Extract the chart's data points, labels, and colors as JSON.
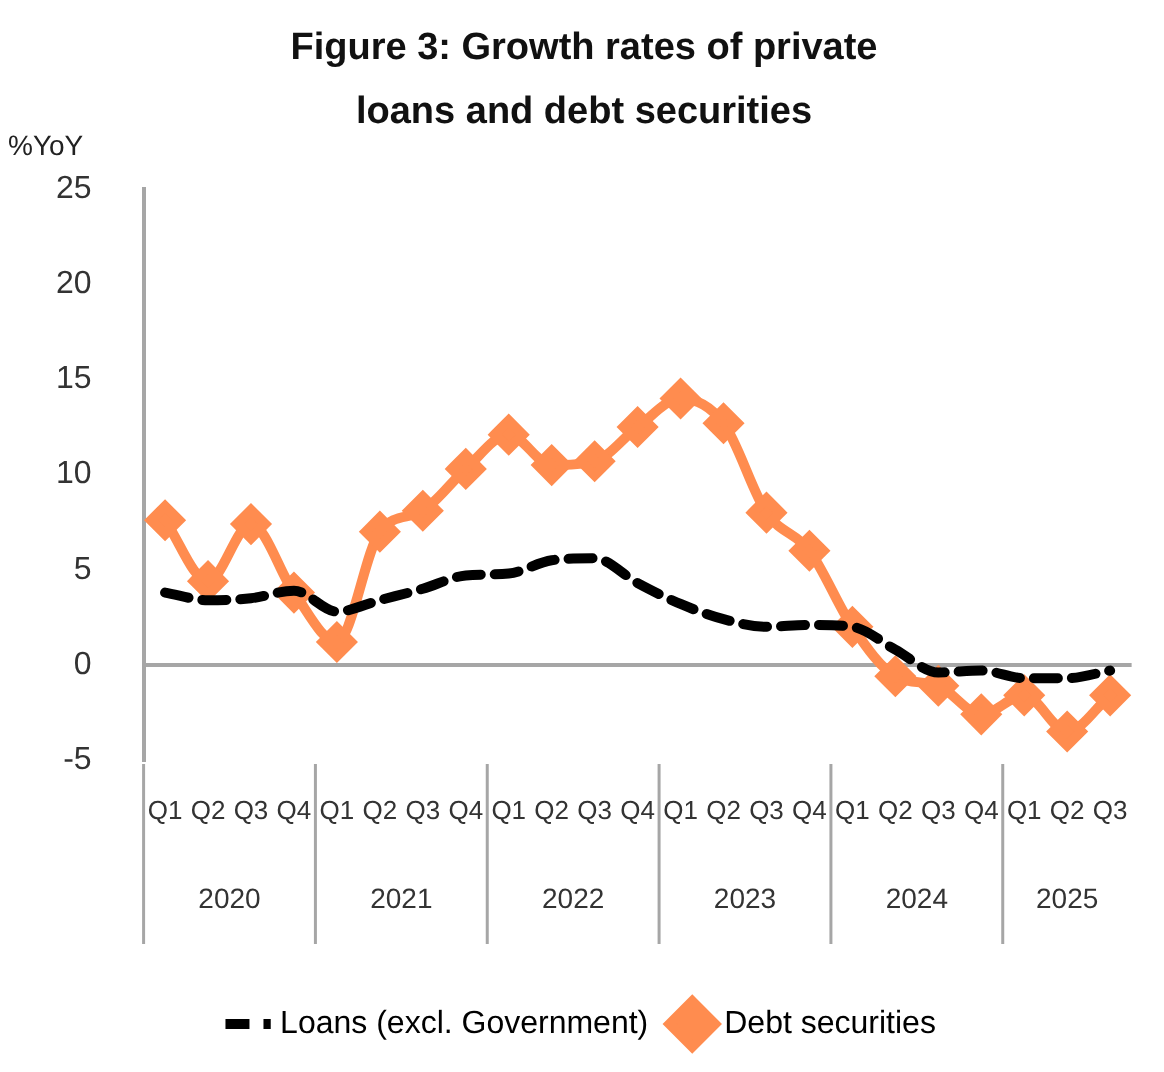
{
  "chart_data": {
    "type": "line",
    "title": "Figure 3: Growth rates of private loans and debt securities",
    "ylabel": "%YoY",
    "categories": [
      "Q1",
      "Q2",
      "Q3",
      "Q4",
      "Q1",
      "Q2",
      "Q3",
      "Q4",
      "Q1",
      "Q2",
      "Q3",
      "Q4",
      "Q1",
      "Q2",
      "Q3",
      "Q4",
      "Q1",
      "Q2",
      "Q3",
      "Q4",
      "Q1",
      "Q2",
      "Q3"
    ],
    "annotations": [
      "2020",
      "2021",
      "2022",
      "2023",
      "2024",
      "2025"
    ],
    "series": [
      {
        "name": "Loans (excl. Government)",
        "color": "#000000",
        "line_style": "dashed",
        "marker": "none",
        "values": [
          3.8,
          3.4,
          3.5,
          3.9,
          2.8,
          3.4,
          4.0,
          4.7,
          4.8,
          5.5,
          5.6,
          4.3,
          3.2,
          2.4,
          2.0,
          2.1,
          2.0,
          0.8,
          -0.4,
          -0.3,
          -0.7,
          -0.7,
          -0.3
        ]
      },
      {
        "name": "Debt securities",
        "color": "#ff8c4f",
        "line_style": "solid",
        "marker": "diamond",
        "values": [
          7.6,
          4.4,
          7.4,
          3.8,
          1.2,
          7.0,
          8.1,
          10.3,
          12.1,
          10.5,
          10.7,
          12.5,
          14.0,
          12.7,
          8.0,
          6.0,
          2.0,
          -0.6,
          -1.1,
          -2.6,
          -1.6,
          -3.5,
          -1.6
        ]
      }
    ],
    "ylim": [
      -5,
      25
    ],
    "yticks": [
      -5,
      0,
      5,
      10,
      15,
      20,
      25
    ],
    "legend": "bottom"
  }
}
